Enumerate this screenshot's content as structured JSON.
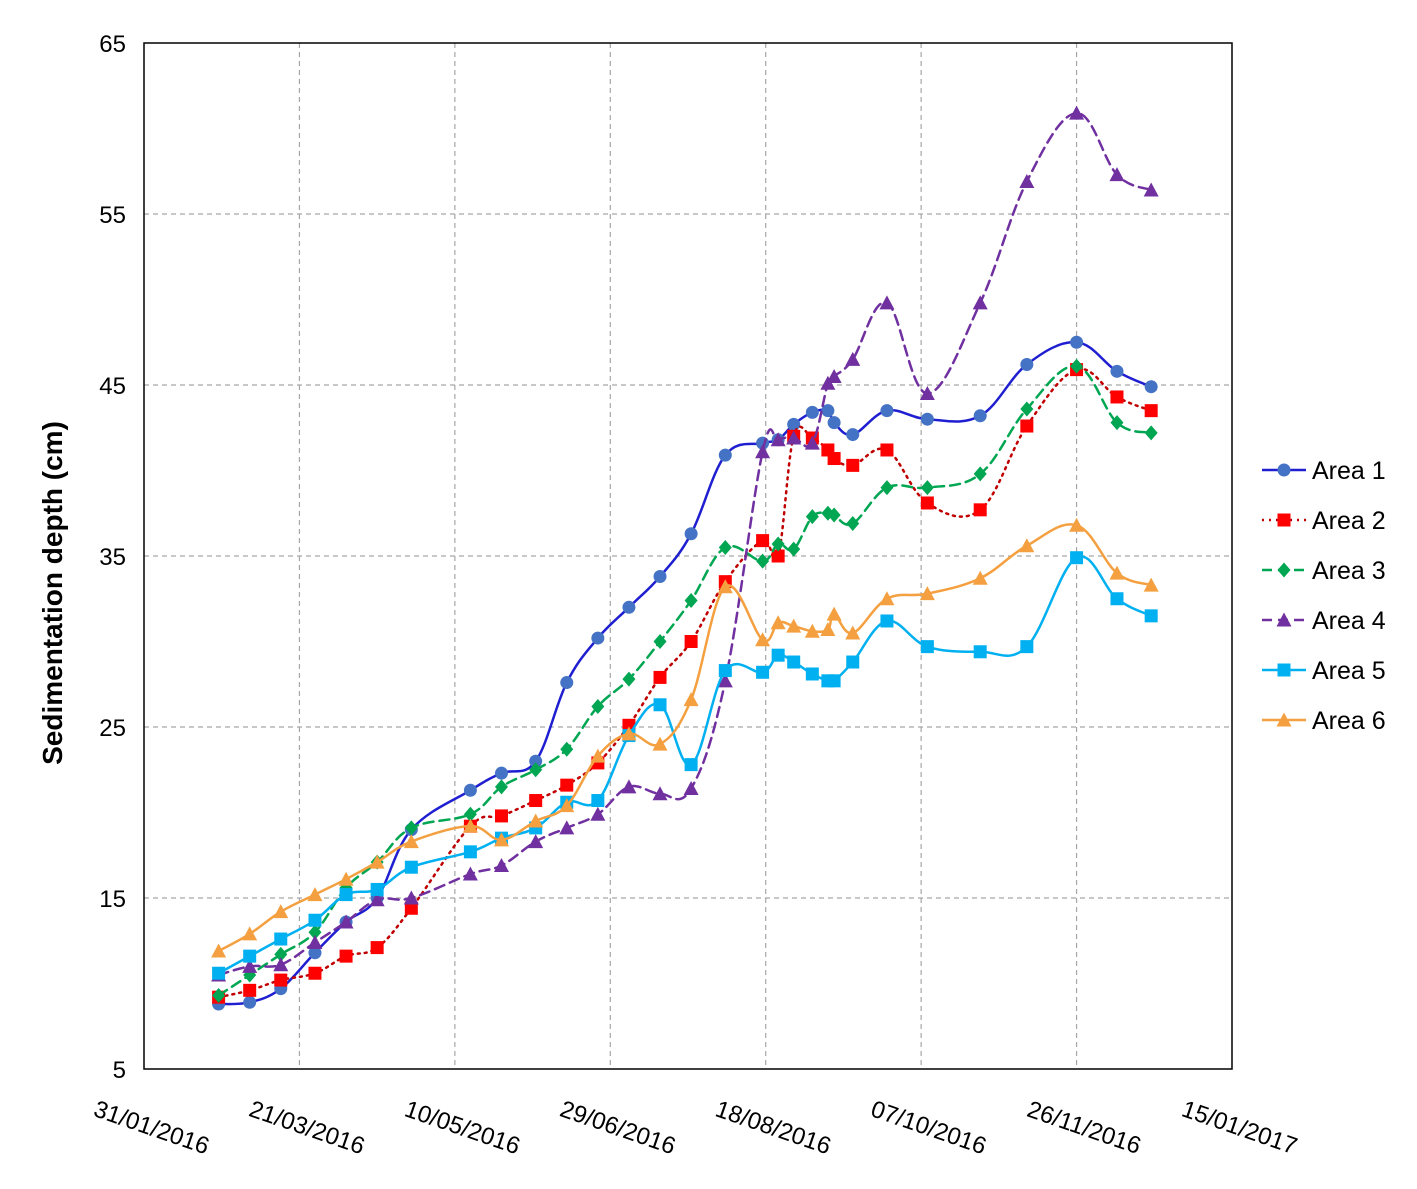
{
  "chart_data": {
    "type": "line",
    "title": "",
    "xlabel": "",
    "ylabel": "Sedimentation depth (cm)",
    "xlim": [
      "2016-01-31",
      "2017-01-15"
    ],
    "ylim": [
      5,
      65
    ],
    "x_ticks": [
      "31/01/2016",
      "21/03/2016",
      "10/05/2016",
      "29/06/2016",
      "18/08/2016",
      "07/10/2016",
      "26/11/2016",
      "15/01/2017"
    ],
    "y_ticks": [
      5,
      15,
      25,
      35,
      45,
      55,
      65
    ],
    "grid": true,
    "legend_position": "right",
    "series": [
      {
        "name": "Area 1",
        "color": "#1f1fd1",
        "marker": "circle",
        "marker_color": "#4472c4",
        "line_style": "solid",
        "points": [
          [
            "2016-02-24",
            8.8
          ],
          [
            "2016-03-05",
            8.9
          ],
          [
            "2016-03-15",
            9.7
          ],
          [
            "2016-03-26",
            11.8
          ],
          [
            "2016-04-05",
            13.6
          ],
          [
            "2016-04-15",
            15.0
          ],
          [
            "2016-04-26",
            19.0
          ],
          [
            "2016-05-15",
            21.3
          ],
          [
            "2016-05-25",
            22.3
          ],
          [
            "2016-06-05",
            23.0
          ],
          [
            "2016-06-15",
            27.6
          ],
          [
            "2016-06-25",
            30.2
          ],
          [
            "2016-07-05",
            32.0
          ],
          [
            "2016-07-15",
            33.8
          ],
          [
            "2016-07-25",
            36.3
          ],
          [
            "2016-08-05",
            40.9
          ],
          [
            "2016-08-17",
            41.6
          ],
          [
            "2016-08-22",
            41.8
          ],
          [
            "2016-08-27",
            42.7
          ],
          [
            "2016-09-02",
            43.4
          ],
          [
            "2016-09-07",
            43.5
          ],
          [
            "2016-09-09",
            42.8
          ],
          [
            "2016-09-15",
            42.1
          ],
          [
            "2016-09-26",
            43.5
          ],
          [
            "2016-10-09",
            43.0
          ],
          [
            "2016-10-26",
            43.2
          ],
          [
            "2016-11-10",
            46.2
          ],
          [
            "2016-11-26",
            47.5
          ],
          [
            "2016-12-09",
            45.8
          ],
          [
            "2016-12-20",
            44.9
          ]
        ]
      },
      {
        "name": "Area 2",
        "color": "#c00000",
        "marker": "square",
        "marker_color": "#ff0000",
        "line_style": "dotted",
        "points": [
          [
            "2016-02-24",
            9.2
          ],
          [
            "2016-03-05",
            9.6
          ],
          [
            "2016-03-15",
            10.2
          ],
          [
            "2016-03-26",
            10.6
          ],
          [
            "2016-04-05",
            11.6
          ],
          [
            "2016-04-15",
            12.1
          ],
          [
            "2016-04-26",
            14.4
          ],
          [
            "2016-05-15",
            19.2
          ],
          [
            "2016-05-25",
            19.8
          ],
          [
            "2016-06-05",
            20.7
          ],
          [
            "2016-06-15",
            21.6
          ],
          [
            "2016-06-25",
            22.9
          ],
          [
            "2016-07-05",
            25.1
          ],
          [
            "2016-07-15",
            27.9
          ],
          [
            "2016-07-25",
            30.0
          ],
          [
            "2016-08-05",
            33.5
          ],
          [
            "2016-08-17",
            35.9
          ],
          [
            "2016-08-22",
            35.0
          ],
          [
            "2016-08-27",
            42.0
          ],
          [
            "2016-09-02",
            41.9
          ],
          [
            "2016-09-07",
            41.2
          ],
          [
            "2016-09-09",
            40.7
          ],
          [
            "2016-09-15",
            40.3
          ],
          [
            "2016-09-26",
            41.2
          ],
          [
            "2016-10-09",
            38.1
          ],
          [
            "2016-10-26",
            37.7
          ],
          [
            "2016-11-10",
            42.6
          ],
          [
            "2016-11-26",
            45.9
          ],
          [
            "2016-12-09",
            44.3
          ],
          [
            "2016-12-20",
            43.5
          ]
        ]
      },
      {
        "name": "Area 3",
        "color": "#00a651",
        "marker": "diamond",
        "marker_color": "#00a651",
        "line_style": "dashed",
        "points": [
          [
            "2016-02-24",
            9.3
          ],
          [
            "2016-03-05",
            10.5
          ],
          [
            "2016-03-15",
            11.7
          ],
          [
            "2016-03-26",
            13.0
          ],
          [
            "2016-04-05",
            15.6
          ],
          [
            "2016-04-15",
            17.1
          ],
          [
            "2016-04-26",
            19.1
          ],
          [
            "2016-05-15",
            19.9
          ],
          [
            "2016-05-25",
            21.5
          ],
          [
            "2016-06-05",
            22.5
          ],
          [
            "2016-06-15",
            23.7
          ],
          [
            "2016-06-25",
            26.2
          ],
          [
            "2016-07-05",
            27.8
          ],
          [
            "2016-07-15",
            30.0
          ],
          [
            "2016-07-25",
            32.4
          ],
          [
            "2016-08-05",
            35.5
          ],
          [
            "2016-08-17",
            34.7
          ],
          [
            "2016-08-22",
            35.7
          ],
          [
            "2016-08-27",
            35.4
          ],
          [
            "2016-09-02",
            37.3
          ],
          [
            "2016-09-07",
            37.5
          ],
          [
            "2016-09-09",
            37.4
          ],
          [
            "2016-09-15",
            36.9
          ],
          [
            "2016-09-26",
            39.0
          ],
          [
            "2016-10-09",
            39.0
          ],
          [
            "2016-10-26",
            39.8
          ],
          [
            "2016-11-10",
            43.6
          ],
          [
            "2016-11-26",
            46.1
          ],
          [
            "2016-12-09",
            42.8
          ],
          [
            "2016-12-20",
            42.2
          ]
        ]
      },
      {
        "name": "Area 4",
        "color": "#7030a0",
        "marker": "triangle",
        "marker_color": "#7030a0",
        "line_style": "dashed",
        "points": [
          [
            "2016-02-24",
            10.5
          ],
          [
            "2016-03-05",
            11.0
          ],
          [
            "2016-03-15",
            11.1
          ],
          [
            "2016-03-26",
            12.4
          ],
          [
            "2016-04-05",
            13.6
          ],
          [
            "2016-04-15",
            14.9
          ],
          [
            "2016-04-26",
            15.0
          ],
          [
            "2016-05-15",
            16.4
          ],
          [
            "2016-05-25",
            16.9
          ],
          [
            "2016-06-05",
            18.3
          ],
          [
            "2016-06-15",
            19.1
          ],
          [
            "2016-06-25",
            19.9
          ],
          [
            "2016-07-05",
            21.5
          ],
          [
            "2016-07-15",
            21.1
          ],
          [
            "2016-07-25",
            21.4
          ],
          [
            "2016-08-05",
            27.7
          ],
          [
            "2016-08-17",
            41.1
          ],
          [
            "2016-08-22",
            41.8
          ],
          [
            "2016-08-27",
            41.9
          ],
          [
            "2016-09-02",
            41.6
          ],
          [
            "2016-09-07",
            45.1
          ],
          [
            "2016-09-09",
            45.5
          ],
          [
            "2016-09-15",
            46.5
          ],
          [
            "2016-09-26",
            49.8
          ],
          [
            "2016-10-09",
            44.5
          ],
          [
            "2016-10-26",
            49.8
          ],
          [
            "2016-11-10",
            56.9
          ],
          [
            "2016-11-26",
            60.9
          ],
          [
            "2016-12-09",
            57.3
          ],
          [
            "2016-12-20",
            56.4
          ]
        ]
      },
      {
        "name": "Area 5",
        "color": "#00b0f0",
        "marker": "square",
        "marker_color": "#00b0f0",
        "line_style": "solid",
        "points": [
          [
            "2016-02-24",
            10.6
          ],
          [
            "2016-03-05",
            11.6
          ],
          [
            "2016-03-15",
            12.6
          ],
          [
            "2016-03-26",
            13.7
          ],
          [
            "2016-04-05",
            15.2
          ],
          [
            "2016-04-15",
            15.5
          ],
          [
            "2016-04-26",
            16.8
          ],
          [
            "2016-05-15",
            17.7
          ],
          [
            "2016-05-25",
            18.5
          ],
          [
            "2016-06-05",
            19.1
          ],
          [
            "2016-06-15",
            20.6
          ],
          [
            "2016-06-25",
            20.7
          ],
          [
            "2016-07-05",
            24.5
          ],
          [
            "2016-07-15",
            26.3
          ],
          [
            "2016-07-25",
            22.8
          ],
          [
            "2016-08-05",
            28.3
          ],
          [
            "2016-08-17",
            28.2
          ],
          [
            "2016-08-22",
            29.2
          ],
          [
            "2016-08-27",
            28.8
          ],
          [
            "2016-09-02",
            28.1
          ],
          [
            "2016-09-07",
            27.7
          ],
          [
            "2016-09-09",
            27.7
          ],
          [
            "2016-09-15",
            28.8
          ],
          [
            "2016-09-26",
            31.2
          ],
          [
            "2016-10-09",
            29.7
          ],
          [
            "2016-10-26",
            29.4
          ],
          [
            "2016-11-10",
            29.7
          ],
          [
            "2016-11-26",
            34.9
          ],
          [
            "2016-12-09",
            32.5
          ],
          [
            "2016-12-20",
            31.5
          ]
        ]
      },
      {
        "name": "Area 6",
        "color": "#f4a040",
        "marker": "triangle",
        "marker_color": "#f4a040",
        "line_style": "solid",
        "points": [
          [
            "2016-02-24",
            11.9
          ],
          [
            "2016-03-05",
            12.9
          ],
          [
            "2016-03-15",
            14.2
          ],
          [
            "2016-03-26",
            15.2
          ],
          [
            "2016-04-05",
            16.1
          ],
          [
            "2016-04-15",
            17.1
          ],
          [
            "2016-04-26",
            18.3
          ],
          [
            "2016-05-15",
            19.2
          ],
          [
            "2016-05-25",
            18.4
          ],
          [
            "2016-06-05",
            19.5
          ],
          [
            "2016-06-15",
            20.4
          ],
          [
            "2016-06-25",
            23.3
          ],
          [
            "2016-07-05",
            24.6
          ],
          [
            "2016-07-15",
            24.0
          ],
          [
            "2016-07-25",
            26.6
          ],
          [
            "2016-08-05",
            33.2
          ],
          [
            "2016-08-17",
            30.1
          ],
          [
            "2016-08-22",
            31.1
          ],
          [
            "2016-08-27",
            30.9
          ],
          [
            "2016-09-02",
            30.6
          ],
          [
            "2016-09-07",
            30.7
          ],
          [
            "2016-09-09",
            31.6
          ],
          [
            "2016-09-15",
            30.5
          ],
          [
            "2016-09-26",
            32.5
          ],
          [
            "2016-10-09",
            32.8
          ],
          [
            "2016-10-26",
            33.7
          ],
          [
            "2016-11-10",
            35.6
          ],
          [
            "2016-11-26",
            36.8
          ],
          [
            "2016-12-09",
            34.0
          ],
          [
            "2016-12-20",
            33.3
          ]
        ]
      }
    ]
  }
}
